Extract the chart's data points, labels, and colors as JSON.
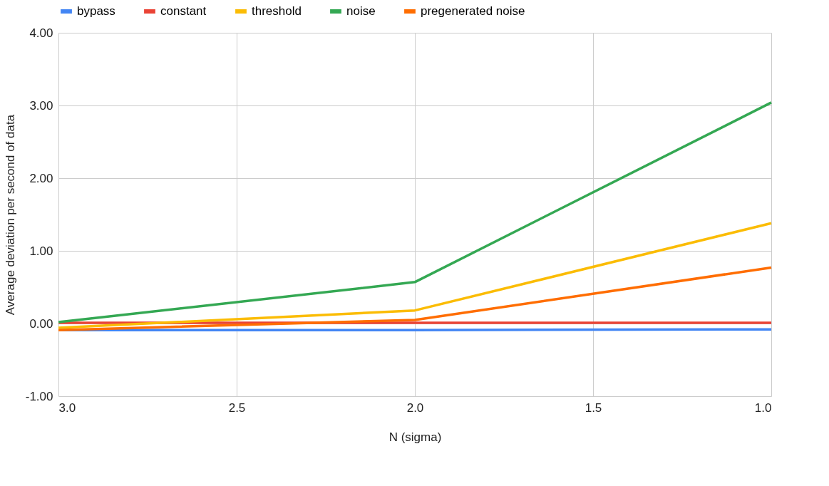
{
  "chart_data": {
    "type": "line",
    "xlabel": "N (sigma)",
    "ylabel": "Average deviation per second of data",
    "x": [
      3.0,
      2.0,
      1.0
    ],
    "series": [
      {
        "name": "bypass",
        "color": "#4285f4",
        "values": [
          -0.09,
          -0.09,
          -0.08
        ]
      },
      {
        "name": "constant",
        "color": "#ea4335",
        "values": [
          0.01,
          0.01,
          0.01
        ]
      },
      {
        "name": "threshold",
        "color": "#fbbc04",
        "values": [
          -0.06,
          0.18,
          1.38
        ]
      },
      {
        "name": "noise",
        "color": "#34a853",
        "values": [
          0.02,
          0.57,
          3.04
        ]
      },
      {
        "name": "pregenerated noise",
        "color": "#ff6d01",
        "values": [
          -0.09,
          0.05,
          0.77
        ]
      }
    ],
    "xlim": [
      3.0,
      1.0
    ],
    "xticks": [
      {
        "value": 3.0,
        "label": "3.0"
      },
      {
        "value": 2.5,
        "label": "2.5"
      },
      {
        "value": 2.0,
        "label": "2.0"
      },
      {
        "value": 1.5,
        "label": "1.5"
      },
      {
        "value": 1.0,
        "label": "1.0"
      }
    ],
    "ylim": [
      -1.0,
      4.0
    ],
    "yticks": [
      {
        "value": -1.0,
        "label": "-1.00"
      },
      {
        "value": 0.0,
        "label": "0.00"
      },
      {
        "value": 1.0,
        "label": "1.00"
      },
      {
        "value": 2.0,
        "label": "2.00"
      },
      {
        "value": 3.0,
        "label": "3.00"
      },
      {
        "value": 4.0,
        "label": "4.00"
      }
    ],
    "grid": true,
    "legend": "top left",
    "marker": "none",
    "line_style": "solid"
  }
}
